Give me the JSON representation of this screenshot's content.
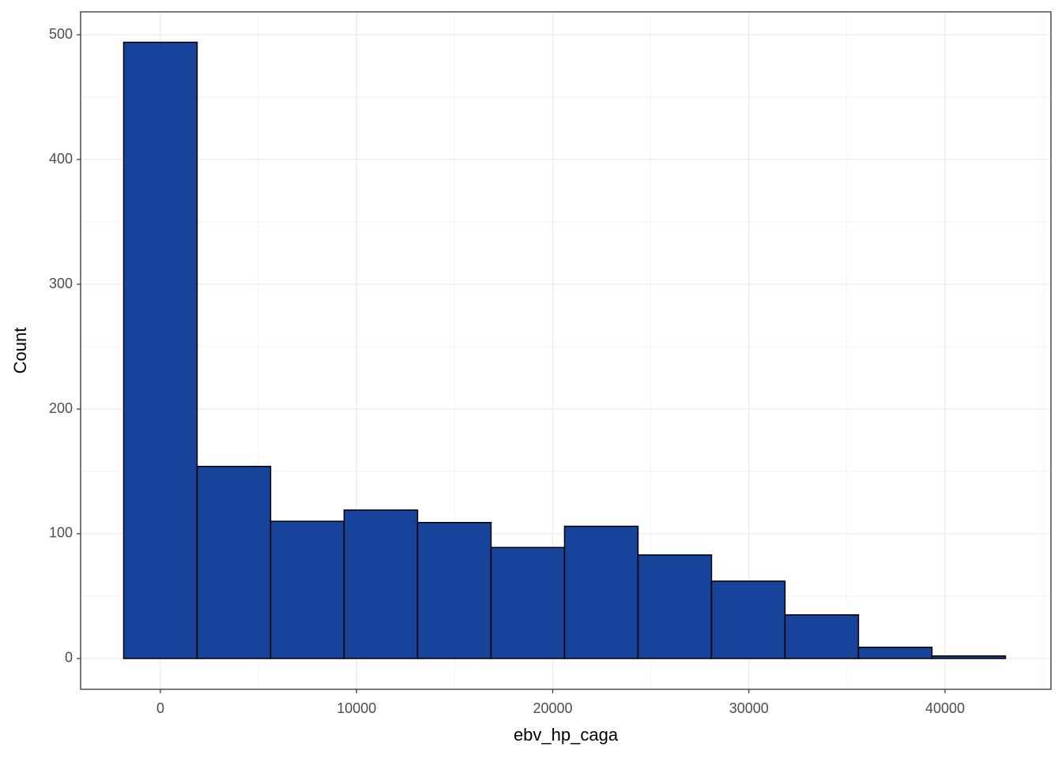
{
  "chart_data": {
    "type": "histogram",
    "x_label": "ebv_hp_caga",
    "y_label": "Count",
    "bins": [
      -1873,
      1873,
      5619,
      9365,
      13111,
      16857,
      20603,
      24349,
      28095,
      31841,
      35587,
      39333,
      43079
    ],
    "counts": [
      494,
      154,
      110,
      119,
      109,
      89,
      106,
      83,
      62,
      35,
      9,
      2
    ],
    "color": "#17439b",
    "edge_color": "#000000",
    "xlim": [
      -4068,
      45398
    ],
    "ylim": [
      -24.7,
      518.4
    ],
    "xticks": [
      0,
      10000,
      20000,
      30000,
      40000
    ],
    "yticks": [
      0,
      100,
      200,
      300,
      400,
      500
    ],
    "grid": true
  }
}
